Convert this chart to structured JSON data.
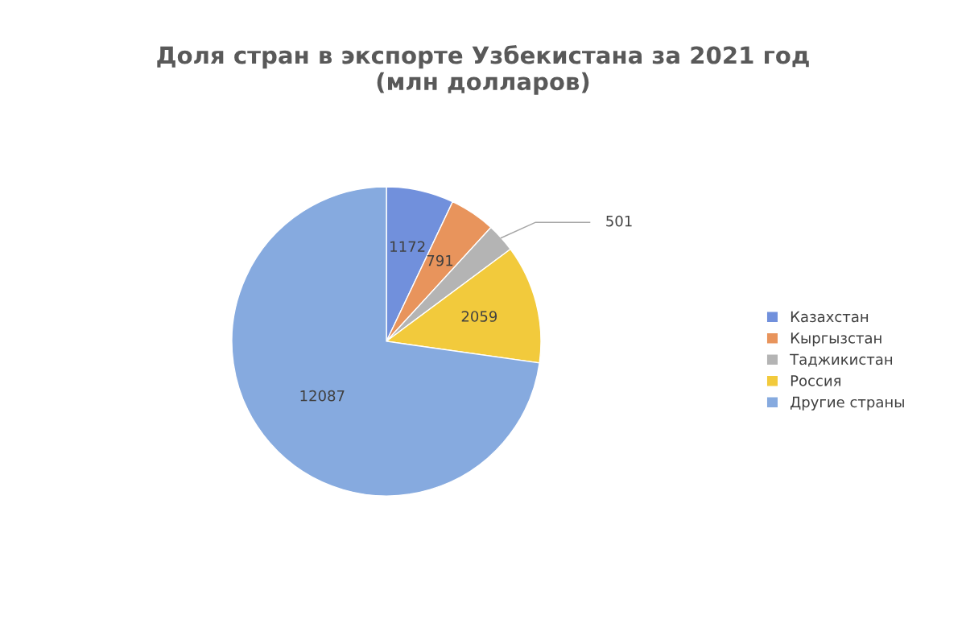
{
  "chart_data": {
    "type": "pie",
    "title": "Доля стран в экспорте Узбекистана за 2021 год\n(млн долларов)",
    "categories": [
      "Казахстан",
      "Кыргызстан",
      "Таджикистан",
      "Россия",
      "Другие страны"
    ],
    "values": [
      1172,
      791,
      501,
      2059,
      12087
    ],
    "colors": [
      "#7190dc",
      "#e8945c",
      "#b4b4b4",
      "#f2ca3c",
      "#86aadf"
    ],
    "data_labels": true,
    "legend": "right"
  }
}
